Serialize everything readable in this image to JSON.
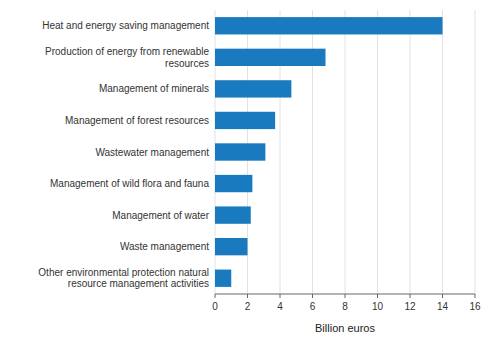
{
  "chart_data": {
    "type": "bar",
    "orientation": "horizontal",
    "categories": [
      "Other environmental protection natural\nresource management activities",
      "Waste management",
      "Management of water",
      "Management of wild flora and fauna",
      "Wastewater management",
      "Management of forest resources",
      "Management of minerals",
      "Production of energy from renewable\nresources",
      "Heat and energy saving management"
    ],
    "values": [
      1.0,
      2.0,
      2.2,
      2.3,
      3.1,
      3.7,
      4.7,
      6.8,
      14.0
    ],
    "color": "#1a7abf",
    "xlabel": "Billion euros",
    "xlim": [
      0,
      16
    ],
    "xticks": [
      0,
      2,
      4,
      6,
      8,
      10,
      12,
      14,
      16
    ],
    "grid": true
  }
}
